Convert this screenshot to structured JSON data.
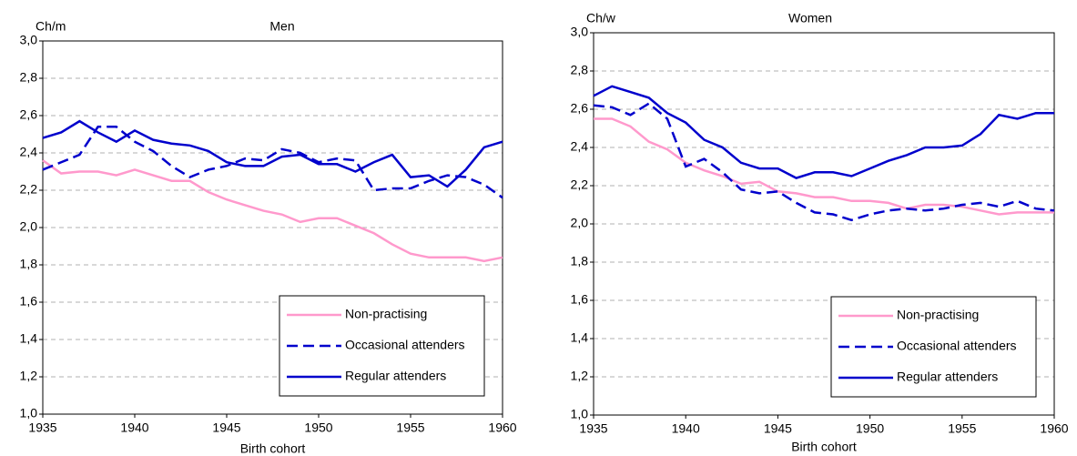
{
  "chart_data": [
    {
      "type": "line",
      "title": "Men",
      "y_label": "Ch/m",
      "x_label": "Birth cohort",
      "x": [
        1935,
        1936,
        1937,
        1938,
        1939,
        1940,
        1941,
        1942,
        1943,
        1944,
        1945,
        1946,
        1947,
        1948,
        1949,
        1950,
        1951,
        1952,
        1953,
        1954,
        1955,
        1956,
        1957,
        1958,
        1959,
        1960
      ],
      "series": [
        {
          "name": "Non-practising",
          "color": "#ff99cc",
          "style": "solid",
          "values": [
            2.36,
            2.29,
            2.3,
            2.3,
            2.28,
            2.31,
            2.28,
            2.25,
            2.25,
            2.19,
            2.15,
            2.12,
            2.09,
            2.07,
            2.03,
            2.05,
            2.05,
            2.01,
            1.97,
            1.91,
            1.86,
            1.84,
            1.84,
            1.84,
            1.82,
            1.84
          ]
        },
        {
          "name": "Occasional attenders",
          "color": "#0000cc",
          "style": "dashed",
          "values": [
            2.31,
            2.35,
            2.39,
            2.54,
            2.54,
            2.46,
            2.41,
            2.33,
            2.27,
            2.31,
            2.33,
            2.37,
            2.36,
            2.42,
            2.4,
            2.35,
            2.37,
            2.36,
            2.2,
            2.21,
            2.21,
            2.25,
            2.28,
            2.27,
            2.23,
            2.16
          ]
        },
        {
          "name": "Regular attenders",
          "color": "#0000cc",
          "style": "solid",
          "values": [
            2.48,
            2.51,
            2.57,
            2.51,
            2.46,
            2.52,
            2.47,
            2.45,
            2.44,
            2.41,
            2.35,
            2.33,
            2.33,
            2.38,
            2.39,
            2.34,
            2.34,
            2.3,
            2.35,
            2.39,
            2.27,
            2.28,
            2.22,
            2.31,
            2.43,
            2.46
          ]
        }
      ],
      "xlim": [
        1935,
        1960
      ],
      "xticks": [
        1935,
        1940,
        1945,
        1950,
        1955,
        1960
      ],
      "ylim": [
        1,
        3
      ],
      "yticks": [
        {
          "value": 1,
          "label": "1,0"
        },
        {
          "value": 1.2,
          "label": "1,2"
        },
        {
          "value": 1.4,
          "label": "1,4"
        },
        {
          "value": 1.6,
          "label": "1,6"
        },
        {
          "value": 1.8,
          "label": "1,8"
        },
        {
          "value": 2,
          "label": "2,0"
        },
        {
          "value": 2.2,
          "label": "2,2"
        },
        {
          "value": 2.4,
          "label": "2,4"
        },
        {
          "value": 2.6,
          "label": "2,6"
        },
        {
          "value": 2.8,
          "label": "2,8"
        },
        {
          "value": 3,
          "label": "3,0"
        }
      ],
      "grid": true,
      "legend": "lower right"
    },
    {
      "type": "line",
      "title": "Women",
      "y_label": "Ch/w",
      "x_label": "Birth cohort",
      "x": [
        1935,
        1936,
        1937,
        1938,
        1939,
        1940,
        1941,
        1942,
        1943,
        1944,
        1945,
        1946,
        1947,
        1948,
        1949,
        1950,
        1951,
        1952,
        1953,
        1954,
        1955,
        1956,
        1957,
        1958,
        1959,
        1960
      ],
      "series": [
        {
          "name": "Non-practising",
          "color": "#ff99cc",
          "style": "solid",
          "values": [
            2.55,
            2.55,
            2.51,
            2.43,
            2.39,
            2.32,
            2.28,
            2.25,
            2.21,
            2.22,
            2.17,
            2.16,
            2.14,
            2.14,
            2.12,
            2.12,
            2.11,
            2.08,
            2.1,
            2.1,
            2.09,
            2.07,
            2.05,
            2.06,
            2.06,
            2.06
          ]
        },
        {
          "name": "Occasional attenders",
          "color": "#0000cc",
          "style": "dashed",
          "values": [
            2.62,
            2.61,
            2.57,
            2.63,
            2.55,
            2.3,
            2.34,
            2.27,
            2.18,
            2.16,
            2.17,
            2.11,
            2.06,
            2.05,
            2.02,
            2.05,
            2.07,
            2.08,
            2.07,
            2.08,
            2.1,
            2.11,
            2.09,
            2.12,
            2.08,
            2.07
          ]
        },
        {
          "name": "Regular attenders",
          "color": "#0000cc",
          "style": "solid",
          "values": [
            2.67,
            2.72,
            2.69,
            2.66,
            2.58,
            2.53,
            2.44,
            2.4,
            2.32,
            2.29,
            2.29,
            2.24,
            2.27,
            2.27,
            2.25,
            2.29,
            2.33,
            2.36,
            2.4,
            2.4,
            2.41,
            2.47,
            2.57,
            2.55,
            2.58,
            2.58
          ]
        }
      ],
      "xlim": [
        1935,
        1960
      ],
      "xticks": [
        1935,
        1940,
        1945,
        1950,
        1955,
        1960
      ],
      "ylim": [
        1,
        3
      ],
      "yticks": [
        {
          "value": 1,
          "label": "1,0"
        },
        {
          "value": 1.2,
          "label": "1,2"
        },
        {
          "value": 1.4,
          "label": "1,4"
        },
        {
          "value": 1.6,
          "label": "1,6"
        },
        {
          "value": 1.8,
          "label": "1,8"
        },
        {
          "value": 2,
          "label": "2,0"
        },
        {
          "value": 2.2,
          "label": "2,2"
        },
        {
          "value": 2.4,
          "label": "2,4"
        },
        {
          "value": 2.6,
          "label": "2,6"
        },
        {
          "value": 2.8,
          "label": "2,8"
        },
        {
          "value": 3,
          "label": "3,0"
        }
      ],
      "grid": true,
      "legend": "lower right"
    }
  ]
}
